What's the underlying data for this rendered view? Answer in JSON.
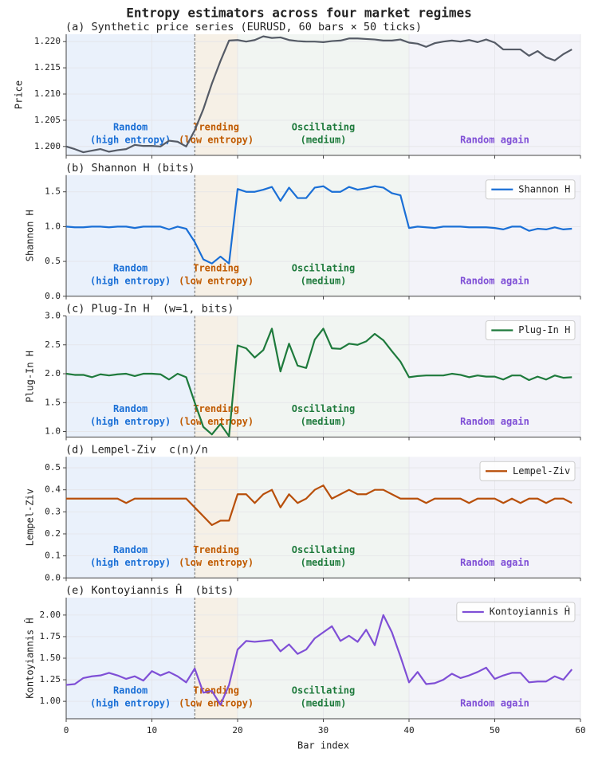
{
  "title": "Entropy estimators across four market regimes",
  "divider": 15,
  "regimes": [
    {
      "start": 0,
      "end": 15,
      "label": [
        "Random",
        "(high entropy)"
      ],
      "color": "#1a6fd6",
      "fill": "#eaf1fb"
    },
    {
      "start": 15,
      "end": 20,
      "label": [
        "Trending",
        "(low entropy)"
      ],
      "color": "#c05a00",
      "fill": "#f6f0e6"
    },
    {
      "start": 20,
      "end": 40,
      "label": [
        "Oscillating",
        "(medium)"
      ],
      "color": "#1e7a3c",
      "fill": "#f1f5f2"
    },
    {
      "start": 40,
      "end": 60,
      "label": [
        "Random again"
      ],
      "color": "#7f4fd6",
      "fill": "#f3f3f9"
    }
  ],
  "chart_data": [
    {
      "type": "line",
      "title": "(a) Synthetic price series (EURUSD, 60 bars × 50 ticks)",
      "ylabel": "Price",
      "color": "#555b66",
      "grid": true,
      "x": [
        0,
        1,
        2,
        3,
        4,
        5,
        6,
        7,
        8,
        9,
        10,
        11,
        12,
        13,
        14,
        15,
        16,
        17,
        18,
        19,
        20,
        21,
        22,
        23,
        24,
        25,
        26,
        27,
        28,
        29,
        30,
        31,
        32,
        33,
        34,
        35,
        36,
        37,
        38,
        39,
        40,
        41,
        42,
        43,
        44,
        45,
        46,
        47,
        48,
        49,
        50,
        51,
        52,
        53,
        54,
        55,
        56,
        57,
        58,
        59
      ],
      "values": [
        1.2,
        1.1995,
        1.1989,
        1.1992,
        1.1995,
        1.199,
        1.1993,
        1.1995,
        1.2003,
        1.2001,
        1.2001,
        1.2,
        1.2011,
        1.2009,
        1.2,
        1.2031,
        1.2071,
        1.212,
        1.2163,
        1.2202,
        1.2203,
        1.22,
        1.2203,
        1.221,
        1.2207,
        1.2208,
        1.2203,
        1.2201,
        1.22,
        1.22,
        1.2199,
        1.2201,
        1.2202,
        1.2206,
        1.2206,
        1.2205,
        1.2204,
        1.2202,
        1.2202,
        1.2204,
        1.2198,
        1.2196,
        1.219,
        1.2197,
        1.22,
        1.2202,
        1.22,
        1.2203,
        1.2199,
        1.2204,
        1.2198,
        1.2185,
        1.2185,
        1.2185,
        1.2173,
        1.2182,
        1.217,
        1.2164,
        1.2176,
        1.2185
      ],
      "xlim": [
        0,
        60
      ],
      "xticks": [
        0,
        10,
        20,
        30,
        40,
        50,
        60
      ],
      "ylim": [
        1.1983,
        1.2214
      ],
      "yticks": [
        {
          "value": 1.2,
          "label": "1.200"
        },
        {
          "value": 1.205,
          "label": "1.205"
        },
        {
          "value": 1.21,
          "label": "1.210"
        },
        {
          "value": 1.215,
          "label": "1.215"
        },
        {
          "value": 1.22,
          "label": "1.220"
        }
      ]
    },
    {
      "type": "line",
      "title": "(b) Shannon H (bits)",
      "ylabel": "Shannon H",
      "grid": true,
      "legend": "upper right",
      "x": [
        0,
        1,
        2,
        3,
        4,
        5,
        6,
        7,
        8,
        9,
        10,
        11,
        12,
        13,
        14,
        15,
        16,
        17,
        18,
        19,
        20,
        21,
        22,
        23,
        24,
        25,
        26,
        27,
        28,
        29,
        30,
        31,
        32,
        33,
        34,
        35,
        36,
        37,
        38,
        39,
        40,
        41,
        42,
        43,
        44,
        45,
        46,
        47,
        48,
        49,
        50,
        51,
        52,
        53,
        54,
        55,
        56,
        57,
        58,
        59
      ],
      "series": [
        {
          "name": "Shannon H",
          "color": "#1a6fd6",
          "values": [
            1.0,
            0.99,
            0.99,
            1.0,
            1.0,
            0.99,
            1.0,
            1.0,
            0.98,
            1.0,
            1.0,
            1.0,
            0.96,
            1.0,
            0.97,
            0.78,
            0.53,
            0.47,
            0.57,
            0.47,
            1.54,
            1.5,
            1.5,
            1.53,
            1.57,
            1.37,
            1.56,
            1.41,
            1.41,
            1.56,
            1.58,
            1.5,
            1.5,
            1.57,
            1.53,
            1.55,
            1.58,
            1.56,
            1.48,
            1.45,
            0.98,
            1.0,
            0.99,
            0.98,
            1.0,
            1.0,
            1.0,
            0.99,
            0.99,
            0.99,
            0.98,
            0.96,
            1.0,
            1.0,
            0.94,
            0.97,
            0.96,
            0.99,
            0.96,
            0.97
          ]
        }
      ],
      "xlim": [
        0,
        60
      ],
      "xticks": [
        0,
        10,
        20,
        30,
        40,
        50,
        60
      ],
      "ylim": [
        0,
        1.74
      ],
      "yticks": [
        {
          "value": 0,
          "label": "0.0"
        },
        0.5,
        {
          "value": 1,
          "label": "1.0"
        },
        1.5
      ]
    },
    {
      "type": "line",
      "title": "(c) Plug-In H  (w=1, bits)",
      "ylabel": "Plug-In H",
      "grid": true,
      "legend": "upper right",
      "x": [
        0,
        1,
        2,
        3,
        4,
        5,
        6,
        7,
        8,
        9,
        10,
        11,
        12,
        13,
        14,
        15,
        16,
        17,
        18,
        19,
        20,
        21,
        22,
        23,
        24,
        25,
        26,
        27,
        28,
        29,
        30,
        31,
        32,
        33,
        34,
        35,
        36,
        37,
        38,
        39,
        40,
        41,
        42,
        43,
        44,
        45,
        46,
        47,
        48,
        49,
        50,
        51,
        52,
        53,
        54,
        55,
        56,
        57,
        58,
        59
      ],
      "series": [
        {
          "name": "Plug-In H",
          "color": "#1e7a3c",
          "values": [
            2.0,
            1.98,
            1.98,
            1.94,
            1.99,
            1.97,
            1.99,
            2.0,
            1.96,
            2.0,
            2.0,
            1.99,
            1.9,
            2.0,
            1.94,
            1.5,
            1.08,
            0.95,
            1.13,
            0.92,
            2.49,
            2.44,
            2.28,
            2.41,
            2.78,
            2.04,
            2.52,
            2.14,
            2.1,
            2.59,
            2.78,
            2.44,
            2.43,
            2.52,
            2.5,
            2.56,
            2.69,
            2.58,
            2.39,
            2.21,
            1.94,
            1.96,
            1.97,
            1.97,
            1.97,
            2.0,
            1.98,
            1.94,
            1.97,
            1.95,
            1.95,
            1.9,
            1.97,
            1.97,
            1.89,
            1.95,
            1.9,
            1.97,
            1.93,
            1.94
          ]
        }
      ],
      "xlim": [
        0,
        60
      ],
      "xticks": [
        0,
        10,
        20,
        30,
        40,
        50,
        60
      ],
      "ylim": [
        0.904,
        3.0
      ],
      "yticks": [
        {
          "value": 1,
          "label": "1.0"
        },
        1.5,
        {
          "value": 2,
          "label": "2.0"
        },
        2.5,
        {
          "value": 3,
          "label": "3.0"
        }
      ]
    },
    {
      "type": "line",
      "title": "(d) Lempel-Ziv  c(n)/n",
      "ylabel": "Lempel-Ziv",
      "grid": true,
      "legend": "upper right",
      "x": [
        0,
        1,
        2,
        3,
        4,
        5,
        6,
        7,
        8,
        9,
        10,
        11,
        12,
        13,
        14,
        15,
        16,
        17,
        18,
        19,
        20,
        21,
        22,
        23,
        24,
        25,
        26,
        27,
        28,
        29,
        30,
        31,
        32,
        33,
        34,
        35,
        36,
        37,
        38,
        39,
        40,
        41,
        42,
        43,
        44,
        45,
        46,
        47,
        48,
        49,
        50,
        51,
        52,
        53,
        54,
        55,
        56,
        57,
        58,
        59
      ],
      "series": [
        {
          "name": "Lempel-Ziv",
          "color": "#b84f0a",
          "values": [
            0.36,
            0.36,
            0.36,
            0.36,
            0.36,
            0.36,
            0.36,
            0.34,
            0.36,
            0.36,
            0.36,
            0.36,
            0.36,
            0.36,
            0.36,
            0.32,
            0.28,
            0.24,
            0.26,
            0.26,
            0.38,
            0.38,
            0.34,
            0.38,
            0.4,
            0.32,
            0.38,
            0.34,
            0.36,
            0.4,
            0.42,
            0.36,
            0.38,
            0.4,
            0.38,
            0.38,
            0.4,
            0.4,
            0.38,
            0.36,
            0.36,
            0.36,
            0.34,
            0.36,
            0.36,
            0.36,
            0.36,
            0.34,
            0.36,
            0.36,
            0.36,
            0.34,
            0.36,
            0.34,
            0.36,
            0.36,
            0.34,
            0.36,
            0.36,
            0.34
          ]
        }
      ],
      "xlim": [
        0,
        60
      ],
      "xticks": [
        0,
        10,
        20,
        30,
        40,
        50,
        60
      ],
      "ylim": [
        0,
        0.55
      ],
      "yticks": [
        {
          "value": 0,
          "label": "0.0"
        },
        0.1,
        0.2,
        0.3,
        0.4,
        0.5
      ]
    },
    {
      "type": "line",
      "title": "(e) Kontoyiannis Ĥ  (bits)",
      "ylabel": "Kontoyiannis Ĥ",
      "xlabel": "Bar index",
      "grid": true,
      "legend": "upper right",
      "x": [
        0,
        1,
        2,
        3,
        4,
        5,
        6,
        7,
        8,
        9,
        10,
        11,
        12,
        13,
        14,
        15,
        16,
        17,
        18,
        19,
        20,
        21,
        22,
        23,
        24,
        25,
        26,
        27,
        28,
        29,
        30,
        31,
        32,
        33,
        34,
        35,
        36,
        37,
        38,
        39,
        40,
        41,
        42,
        43,
        44,
        45,
        46,
        47,
        48,
        49,
        50,
        51,
        52,
        53,
        54,
        55,
        56,
        57,
        58,
        59
      ],
      "series": [
        {
          "name": "Kontoyiannis Ĥ",
          "color": "#7f4fd6",
          "values": [
            1.19,
            1.2,
            1.27,
            1.29,
            1.3,
            1.33,
            1.3,
            1.26,
            1.29,
            1.24,
            1.35,
            1.3,
            1.34,
            1.29,
            1.22,
            1.38,
            1.1,
            1.12,
            0.96,
            1.19,
            1.6,
            1.7,
            1.69,
            1.7,
            1.71,
            1.58,
            1.66,
            1.55,
            1.6,
            1.73,
            1.8,
            1.87,
            1.7,
            1.76,
            1.69,
            1.83,
            1.65,
            2.0,
            1.8,
            1.52,
            1.22,
            1.34,
            1.2,
            1.21,
            1.25,
            1.32,
            1.27,
            1.3,
            1.34,
            1.39,
            1.26,
            1.3,
            1.33,
            1.33,
            1.22,
            1.23,
            1.23,
            1.29,
            1.25,
            1.37
          ]
        }
      ],
      "xlim": [
        0,
        60
      ],
      "xticks": [
        0,
        10,
        20,
        30,
        40,
        50,
        60
      ],
      "ylim": [
        0.798,
        2.202
      ],
      "yticks": [
        {
          "value": 1,
          "label": "1.00"
        },
        1.25,
        {
          "value": 1.5,
          "label": "1.50"
        },
        1.75,
        {
          "value": 2,
          "label": "2.00"
        }
      ]
    }
  ]
}
